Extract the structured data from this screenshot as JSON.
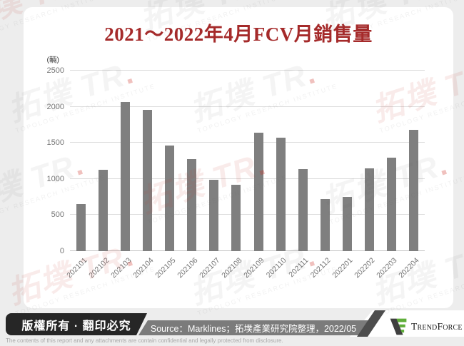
{
  "page": {
    "title": "2021～2022年4月FCV月銷售量",
    "unit_label": "(輛)"
  },
  "chart_data": {
    "type": "bar",
    "title": "2021～2022年4月FCV月銷售量",
    "categories": [
      "202101",
      "202102",
      "202103",
      "202104",
      "202105",
      "202106",
      "202107",
      "202108",
      "202109",
      "202110",
      "202111",
      "202112",
      "202201",
      "202202",
      "202203",
      "202204"
    ],
    "values": [
      650,
      1130,
      2070,
      1960,
      1460,
      1270,
      990,
      920,
      1640,
      1570,
      1140,
      720,
      750,
      1150,
      1290,
      1680
    ],
    "xlabel": "",
    "ylabel": "(輛)",
    "ylim": [
      0,
      2500
    ],
    "ytick_step": 500,
    "grid": true,
    "legend": false,
    "bar_color": "#7f7f7f"
  },
  "footer": {
    "copyright": "版權所有 · 翻印必究",
    "source": "Source：Marklines；拓墣產業研究院整理，2022/05",
    "brand": {
      "cap1": "T",
      "low1": "REND",
      "cap2": "F",
      "low2": "ORCE"
    },
    "disclaimer": "The contents of this report and any attachments are contain confidential and legally protected from disclosure."
  },
  "watermark": {
    "cjk": "拓墣",
    "logo": "TR",
    "subtext": "TOPOLOGY RESEARCH INSTITUTE"
  },
  "colors": {
    "title_red": "#a52a2a",
    "bar_gray": "#7f7f7f",
    "banner_dark": "#262626",
    "banner_gray": "#7b7b7b",
    "brand_green": "#5fae3a",
    "page_bg": "#ededed"
  }
}
